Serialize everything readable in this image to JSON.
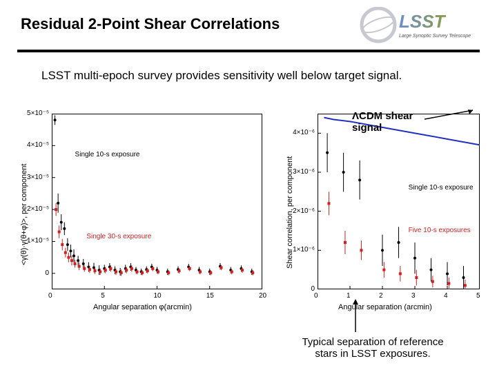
{
  "title": "Residual 2-Point Shear Correlations",
  "subtitle": "LSST multi-epoch survey provides sensitivity well below target signal.",
  "logo": {
    "main_text": "LSST",
    "sub_text": "Large Synoptic Survey Telescope",
    "gradient_left": "#6b8fc9",
    "gradient_right": "#8a9c48",
    "ring_color": "#c8c8d0"
  },
  "callout_lcdm": "ΛCDM shear signal",
  "caption_bottom_line1": "Typical separation of reference",
  "caption_bottom_line2": "stars in LSST exposures.",
  "chart_left": {
    "type": "scatter",
    "ylabel": "<γ(θ)·γ(θ+φ)>, per component",
    "xlabel": "Angular separation φ(arcmin)",
    "xlim": [
      0,
      20
    ],
    "ylim": [
      -5e-06,
      5e-05
    ],
    "xticks": [
      0,
      5,
      10,
      15,
      20
    ],
    "yticks_labels": [
      "0",
      "1×10⁻⁵",
      "2×10⁻⁵",
      "3×10⁻⁵",
      "4×10⁻⁵",
      "5×10⁻⁵"
    ],
    "yticks_vals": [
      0,
      1e-05,
      2e-05,
      3e-05,
      4e-05,
      5e-05
    ],
    "background_color": "#ffffff",
    "series": [
      {
        "name": "Single 10-s exposure",
        "label_pos": {
          "x": 2.2,
          "y": 3.7e-05
        },
        "color": "#000000",
        "marker": "circle",
        "data": [
          {
            "x": 0.3,
            "y": 4.8e-05,
            "err": 1.5e-06
          },
          {
            "x": 0.6,
            "y": 2.2e-05,
            "err": 3e-06
          },
          {
            "x": 0.9,
            "y": 1.6e-05,
            "err": 2.5e-06
          },
          {
            "x": 1.2,
            "y": 1.4e-05,
            "err": 2e-06
          },
          {
            "x": 1.5,
            "y": 9e-06,
            "err": 2e-06
          },
          {
            "x": 1.8,
            "y": 7e-06,
            "err": 2e-06
          },
          {
            "x": 2.1,
            "y": 5.5e-06,
            "err": 2e-06
          },
          {
            "x": 2.5,
            "y": 4e-06,
            "err": 1.5e-06
          },
          {
            "x": 3.0,
            "y": 3e-06,
            "err": 1.5e-06
          },
          {
            "x": 3.5,
            "y": 2e-06,
            "err": 1.5e-06
          },
          {
            "x": 4.0,
            "y": 1.8e-06,
            "err": 1.5e-06
          },
          {
            "x": 4.5,
            "y": 1e-06,
            "err": 1.5e-06
          },
          {
            "x": 5.0,
            "y": 1.5e-06,
            "err": 1.2e-06
          },
          {
            "x": 5.5,
            "y": 2e-06,
            "err": 1.2e-06
          },
          {
            "x": 6.0,
            "y": 1e-06,
            "err": 1.2e-06
          },
          {
            "x": 6.5,
            "y": 5e-07,
            "err": 1.2e-06
          },
          {
            "x": 7.0,
            "y": 1.5e-06,
            "err": 1.2e-06
          },
          {
            "x": 7.5,
            "y": 2e-06,
            "err": 1.2e-06
          },
          {
            "x": 8.0,
            "y": 1e-06,
            "err": 1e-06
          },
          {
            "x": 8.5,
            "y": 5e-07,
            "err": 1e-06
          },
          {
            "x": 9.0,
            "y": 1.2e-06,
            "err": 1e-06
          },
          {
            "x": 9.5,
            "y": 2e-06,
            "err": 1e-06
          },
          {
            "x": 10,
            "y": 1e-06,
            "err": 1e-06
          },
          {
            "x": 11,
            "y": 5e-07,
            "err": 1e-06
          },
          {
            "x": 12,
            "y": 1.2e-06,
            "err": 1e-06
          },
          {
            "x": 13,
            "y": 2e-06,
            "err": 1e-06
          },
          {
            "x": 14,
            "y": 1e-06,
            "err": 1e-06
          },
          {
            "x": 15,
            "y": 5e-07,
            "err": 1e-06
          },
          {
            "x": 16,
            "y": 2.2e-06,
            "err": 1e-06
          },
          {
            "x": 17,
            "y": 1e-06,
            "err": 1e-06
          },
          {
            "x": 18,
            "y": 1.5e-06,
            "err": 1e-06
          },
          {
            "x": 19,
            "y": 5e-07,
            "err": 1e-06
          }
        ]
      },
      {
        "name": "Single 30-s exposure",
        "label_pos": {
          "x": 3.3,
          "y": 1.15e-05
        },
        "color": "#d02020",
        "marker": "square",
        "data": [
          {
            "x": 0.4,
            "y": 2e-05,
            "err": 2e-06
          },
          {
            "x": 0.7,
            "y": 1.3e-05,
            "err": 2e-06
          },
          {
            "x": 1.0,
            "y": 9e-06,
            "err": 1.8e-06
          },
          {
            "x": 1.3,
            "y": 6.5e-06,
            "err": 1.5e-06
          },
          {
            "x": 1.6,
            "y": 5e-06,
            "err": 1.5e-06
          },
          {
            "x": 1.9,
            "y": 4e-06,
            "err": 1.5e-06
          },
          {
            "x": 2.2,
            "y": 3e-06,
            "err": 1.2e-06
          },
          {
            "x": 2.6,
            "y": 2.2e-06,
            "err": 1.2e-06
          },
          {
            "x": 3.1,
            "y": 1.5e-06,
            "err": 1e-06
          },
          {
            "x": 3.6,
            "y": 1.2e-06,
            "err": 1e-06
          },
          {
            "x": 4.1,
            "y": 8e-07,
            "err": 1e-06
          },
          {
            "x": 4.6,
            "y": 5e-07,
            "err": 1e-06
          },
          {
            "x": 5.1,
            "y": 1e-06,
            "err": 1e-06
          },
          {
            "x": 5.6,
            "y": 1.5e-06,
            "err": 1e-06
          },
          {
            "x": 6.1,
            "y": 5e-07,
            "err": 1e-06
          },
          {
            "x": 6.6,
            "y": 2e-07,
            "err": 1e-06
          },
          {
            "x": 7.1,
            "y": 1e-06,
            "err": 1e-06
          },
          {
            "x": 7.6,
            "y": 1.5e-06,
            "err": 1e-06
          },
          {
            "x": 8.1,
            "y": 5e-07,
            "err": 8e-07
          },
          {
            "x": 8.6,
            "y": 2e-07,
            "err": 8e-07
          },
          {
            "x": 9.1,
            "y": 8e-07,
            "err": 8e-07
          },
          {
            "x": 9.6,
            "y": 1.5e-06,
            "err": 8e-07
          },
          {
            "x": 10.1,
            "y": 5e-07,
            "err": 8e-07
          },
          {
            "x": 11.1,
            "y": 2e-07,
            "err": 8e-07
          },
          {
            "x": 12.1,
            "y": 8e-07,
            "err": 8e-07
          },
          {
            "x": 13.1,
            "y": 1.5e-06,
            "err": 8e-07
          },
          {
            "x": 14.1,
            "y": 5e-07,
            "err": 8e-07
          },
          {
            "x": 15.1,
            "y": 2e-07,
            "err": 8e-07
          },
          {
            "x": 16.1,
            "y": 1.8e-06,
            "err": 8e-07
          },
          {
            "x": 17.1,
            "y": 5e-07,
            "err": 8e-07
          },
          {
            "x": 18.1,
            "y": 1e-06,
            "err": 8e-07
          },
          {
            "x": 19.1,
            "y": 2e-07,
            "err": 8e-07
          }
        ]
      }
    ]
  },
  "chart_right": {
    "type": "scatter",
    "ylabel": "Shear correlation, per component",
    "xlabel": "Angular separation (arcmin)",
    "xlim": [
      0,
      5
    ],
    "ylim": [
      0,
      4.5e-06
    ],
    "xticks": [
      0,
      1,
      2,
      3,
      4,
      5
    ],
    "yticks_labels": [
      "0",
      "1×10⁻⁶",
      "2×10⁻⁶",
      "3×10⁻⁶",
      "4×10⁻⁶"
    ],
    "yticks_vals": [
      0,
      1e-06,
      2e-06,
      3e-06,
      4e-06
    ],
    "background_color": "#ffffff",
    "lcdm_line": {
      "color": "#2030c0",
      "data": [
        {
          "x": 0.2,
          "y": 4.4e-06
        },
        {
          "x": 0.5,
          "y": 4.35e-06
        },
        {
          "x": 1.0,
          "y": 4.3e-06
        },
        {
          "x": 2.0,
          "y": 4.15e-06
        },
        {
          "x": 3.0,
          "y": 4e-06
        },
        {
          "x": 4.0,
          "y": 3.85e-06
        },
        {
          "x": 5.0,
          "y": 3.7e-06
        }
      ]
    },
    "series": [
      {
        "name": "Single 10-s exposure",
        "label_pos": {
          "x": 2.8,
          "y": 2.6e-06
        },
        "color": "#000000",
        "marker": "circle",
        "data": [
          {
            "x": 0.3,
            "y": 3.5e-06,
            "err": 5e-07
          },
          {
            "x": 0.8,
            "y": 3e-06,
            "err": 5e-07
          },
          {
            "x": 1.3,
            "y": 2.8e-06,
            "err": 5e-07
          },
          {
            "x": 2.0,
            "y": 1e-06,
            "err": 4e-07
          },
          {
            "x": 2.5,
            "y": 1.2e-06,
            "err": 4e-07
          },
          {
            "x": 3.0,
            "y": 8e-07,
            "err": 4e-07
          },
          {
            "x": 3.5,
            "y": 5e-07,
            "err": 3e-07
          },
          {
            "x": 4.0,
            "y": 4e-07,
            "err": 3e-07
          },
          {
            "x": 4.5,
            "y": 3e-07,
            "err": 3e-07
          }
        ]
      },
      {
        "name": "Five 10-s exposures",
        "label_pos": {
          "x": 2.8,
          "y": 1.5e-06
        },
        "color": "#d02020",
        "marker": "square",
        "data": [
          {
            "x": 0.35,
            "y": 2.2e-06,
            "err": 3e-07
          },
          {
            "x": 0.85,
            "y": 1.2e-06,
            "err": 3e-07
          },
          {
            "x": 1.35,
            "y": 1e-06,
            "err": 2.5e-07
          },
          {
            "x": 2.05,
            "y": 5e-07,
            "err": 2e-07
          },
          {
            "x": 2.55,
            "y": 4e-07,
            "err": 2e-07
          },
          {
            "x": 3.05,
            "y": 3e-07,
            "err": 2e-07
          },
          {
            "x": 3.55,
            "y": 2e-07,
            "err": 1.5e-07
          },
          {
            "x": 4.05,
            "y": 1.5e-07,
            "err": 1.5e-07
          },
          {
            "x": 4.55,
            "y": 1e-07,
            "err": 1.5e-07
          }
        ]
      }
    ]
  },
  "arrow_color": "#000000"
}
